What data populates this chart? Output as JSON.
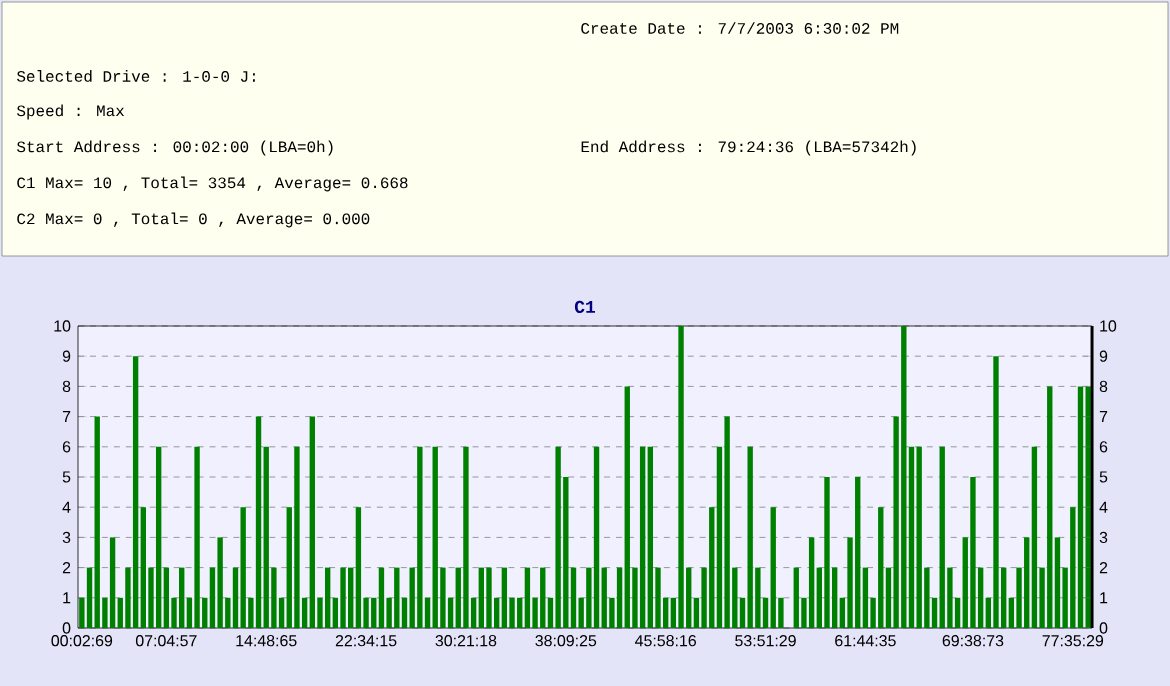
{
  "chart_data": {
    "type": "bar",
    "title": "C1",
    "annotations": [
      "Create Date    :  7/7/2003 6:30:02 PM",
      "Selected Drive : 1-0-0 J:",
      "Speed          : Max",
      "Start Address  : 00:02:00 (LBA=0h)",
      "End Address    : 79:24:36 (LBA=57342h)",
      "C1 Max= 10 , Total= 3354 , Average= 0.668",
      "C2 Max= 0 , Total= 0 , Average= 0.000"
    ],
    "categories": [
      "00:02:69",
      null,
      null,
      null,
      null,
      null,
      null,
      null,
      null,
      null,
      null,
      "07:04:57",
      null,
      null,
      null,
      null,
      null,
      null,
      null,
      null,
      null,
      null,
      null,
      null,
      "14:48:65",
      null,
      null,
      null,
      null,
      null,
      null,
      null,
      null,
      null,
      null,
      null,
      null,
      "22:34:15",
      null,
      null,
      null,
      null,
      null,
      null,
      null,
      null,
      null,
      null,
      null,
      null,
      "30:21:18",
      null,
      null,
      null,
      null,
      null,
      null,
      null,
      null,
      null,
      null,
      null,
      null,
      "38:09:25",
      null,
      null,
      null,
      null,
      null,
      null,
      null,
      null,
      null,
      null,
      null,
      null,
      "45:58:16",
      null,
      null,
      null,
      null,
      null,
      null,
      null,
      null,
      null,
      null,
      null,
      null,
      "53:51:29",
      null,
      null,
      null,
      null,
      null,
      null,
      null,
      null,
      null,
      null,
      null,
      null,
      "61:44:35",
      null,
      null,
      null,
      null,
      null,
      null,
      null,
      null,
      null,
      null,
      null,
      null,
      null,
      "69:38:73",
      null,
      null,
      null,
      null,
      null,
      null,
      null,
      null,
      null,
      null,
      null,
      null,
      "77:35:29",
      null,
      null
    ],
    "values": [
      1,
      2,
      7,
      1,
      3,
      1,
      2,
      9,
      4,
      2,
      6,
      2,
      1,
      2,
      1,
      6,
      1,
      2,
      3,
      1,
      2,
      4,
      1,
      7,
      6,
      2,
      1,
      4,
      6,
      1,
      7,
      1,
      2,
      1,
      2,
      2,
      4,
      1,
      1,
      2,
      1,
      2,
      1,
      2,
      6,
      1,
      6,
      2,
      1,
      2,
      6,
      1,
      2,
      2,
      1,
      2,
      1,
      1,
      2,
      1,
      2,
      1,
      6,
      5,
      2,
      1,
      2,
      6,
      2,
      1,
      2,
      8,
      2,
      6,
      6,
      2,
      1,
      1,
      10,
      2,
      1,
      2,
      4,
      6,
      7,
      2,
      1,
      6,
      2,
      1,
      4,
      1,
      0,
      2,
      1,
      3,
      2,
      5,
      2,
      1,
      3,
      5,
      2,
      1,
      4,
      2,
      7,
      10,
      6,
      6,
      2,
      1,
      6,
      2,
      1,
      3,
      5,
      2,
      1,
      9,
      2,
      1,
      2,
      3,
      6,
      2,
      8,
      3,
      2,
      4,
      8,
      8
    ],
    "color": "#008000",
    "ylim": [
      0,
      10
    ],
    "yticks": [
      0,
      1,
      2,
      3,
      4,
      5,
      6,
      7,
      8,
      9,
      10
    ],
    "y2lim": [
      0,
      10
    ],
    "y2ticks": [
      0,
      1,
      2,
      3,
      4,
      5,
      6,
      7,
      8,
      9,
      10
    ],
    "grid": "y"
  }
}
